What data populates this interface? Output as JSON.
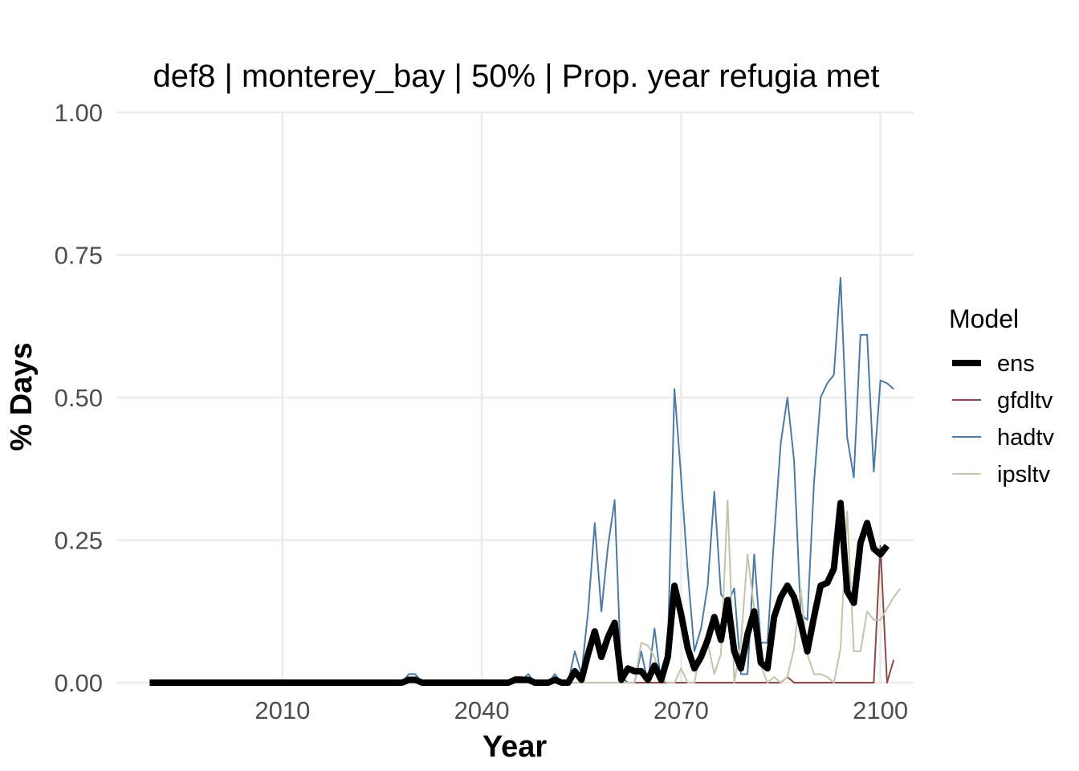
{
  "chart_data": {
    "type": "line",
    "title": "def8 | monterey_bay | 50% | Prop. year refugia met",
    "xlabel": "Year",
    "ylabel": "% Days",
    "xlim": [
      1985,
      2105
    ],
    "ylim": [
      0,
      1.0
    ],
    "x_ticks": [
      2010,
      2040,
      2070,
      2100
    ],
    "y_ticks": [
      0,
      0.25,
      0.5,
      0.75,
      1.0
    ],
    "y_tick_labels": [
      "0.00",
      "0.25",
      "0.50",
      "0.75",
      "1.00"
    ],
    "grid": true,
    "legend": {
      "title": "Model",
      "position": "right"
    },
    "x_start": 1990,
    "x_end": 2100,
    "series": [
      {
        "name": "ens",
        "color": "#000000",
        "emphasis": true,
        "points": [
          [
            1990,
            0
          ],
          [
            2028,
            0
          ],
          [
            2029,
            0.005
          ],
          [
            2030,
            0.005
          ],
          [
            2031,
            0
          ],
          [
            2044,
            0
          ],
          [
            2045,
            0.005
          ],
          [
            2046,
            0.005
          ],
          [
            2047,
            0.005
          ],
          [
            2048,
            0
          ],
          [
            2050,
            0
          ],
          [
            2051,
            0.005
          ],
          [
            2052,
            0
          ],
          [
            2053,
            0
          ],
          [
            2054,
            0.02
          ],
          [
            2055,
            0.005
          ],
          [
            2056,
            0.05
          ],
          [
            2057,
            0.09
          ],
          [
            2058,
            0.045
          ],
          [
            2059,
            0.08
          ],
          [
            2060,
            0.105
          ],
          [
            2061,
            0.005
          ],
          [
            2062,
            0.025
          ],
          [
            2063,
            0.02
          ],
          [
            2064,
            0.02
          ],
          [
            2065,
            0.005
          ],
          [
            2066,
            0.03
          ],
          [
            2067,
            0.005
          ],
          [
            2068,
            0.045
          ],
          [
            2069,
            0.17
          ],
          [
            2070,
            0.12
          ],
          [
            2071,
            0.06
          ],
          [
            2072,
            0.025
          ],
          [
            2073,
            0.045
          ],
          [
            2074,
            0.075
          ],
          [
            2075,
            0.115
          ],
          [
            2076,
            0.075
          ],
          [
            2077,
            0.145
          ],
          [
            2078,
            0.055
          ],
          [
            2079,
            0.025
          ],
          [
            2080,
            0.085
          ],
          [
            2081,
            0.125
          ],
          [
            2082,
            0.035
          ],
          [
            2083,
            0.025
          ],
          [
            2084,
            0.115
          ],
          [
            2085,
            0.15
          ],
          [
            2086,
            0.17
          ],
          [
            2087,
            0.15
          ],
          [
            2088,
            0.105
          ],
          [
            2089,
            0.055
          ],
          [
            2090,
            0.115
          ],
          [
            2091,
            0.17
          ],
          [
            2092,
            0.175
          ],
          [
            2093,
            0.2
          ],
          [
            2094,
            0.315
          ],
          [
            2095,
            0.16
          ],
          [
            2096,
            0.14
          ],
          [
            2097,
            0.245
          ],
          [
            2098,
            0.28
          ],
          [
            2099,
            0.235
          ],
          [
            2100,
            0.225
          ],
          [
            2101,
            0.24
          ]
        ]
      },
      {
        "name": "gfdltv",
        "color": "#8b4a48",
        "emphasis": false,
        "points": [
          [
            1990,
            0
          ],
          [
            2044,
            0
          ],
          [
            2045,
            0.01
          ],
          [
            2046,
            0.01
          ],
          [
            2047,
            0
          ],
          [
            2085,
            0
          ],
          [
            2086,
            0.01
          ],
          [
            2087,
            0
          ],
          [
            2099,
            0
          ],
          [
            2100,
            0.24
          ],
          [
            2101,
            0
          ],
          [
            2102,
            0.04
          ]
        ]
      },
      {
        "name": "hadtv",
        "color": "#4a7aa6",
        "emphasis": false,
        "points": [
          [
            1990,
            0
          ],
          [
            2028,
            0
          ],
          [
            2029,
            0.015
          ],
          [
            2030,
            0.015
          ],
          [
            2031,
            0
          ],
          [
            2045,
            0
          ],
          [
            2046,
            0.005
          ],
          [
            2047,
            0.015
          ],
          [
            2048,
            0
          ],
          [
            2050,
            0
          ],
          [
            2051,
            0.015
          ],
          [
            2052,
            0
          ],
          [
            2053,
            0
          ],
          [
            2054,
            0.055
          ],
          [
            2055,
            0.015
          ],
          [
            2056,
            0.125
          ],
          [
            2057,
            0.28
          ],
          [
            2058,
            0.125
          ],
          [
            2059,
            0.24
          ],
          [
            2060,
            0.32
          ],
          [
            2061,
            0.01
          ],
          [
            2062,
            0
          ],
          [
            2063,
            0
          ],
          [
            2064,
            0.055
          ],
          [
            2065,
            0
          ],
          [
            2066,
            0.095
          ],
          [
            2067,
            0
          ],
          [
            2068,
            0.06
          ],
          [
            2069,
            0.515
          ],
          [
            2070,
            0.36
          ],
          [
            2071,
            0.195
          ],
          [
            2072,
            0.055
          ],
          [
            2073,
            0.095
          ],
          [
            2074,
            0.17
          ],
          [
            2075,
            0.335
          ],
          [
            2076,
            0.155
          ],
          [
            2077,
            0.14
          ],
          [
            2078,
            0.165
          ],
          [
            2079,
            0.015
          ],
          [
            2080,
            0.015
          ],
          [
            2081,
            0.225
          ],
          [
            2082,
            0.07
          ],
          [
            2083,
            0.07
          ],
          [
            2084,
            0.255
          ],
          [
            2085,
            0.42
          ],
          [
            2086,
            0.5
          ],
          [
            2087,
            0.39
          ],
          [
            2088,
            0.12
          ],
          [
            2089,
            0.11
          ],
          [
            2090,
            0.35
          ],
          [
            2091,
            0.5
          ],
          [
            2092,
            0.525
          ],
          [
            2093,
            0.54
          ],
          [
            2094,
            0.71
          ],
          [
            2095,
            0.43
          ],
          [
            2096,
            0.36
          ],
          [
            2097,
            0.61
          ],
          [
            2098,
            0.61
          ],
          [
            2099,
            0.37
          ],
          [
            2100,
            0.53
          ],
          [
            2101,
            0.525
          ],
          [
            2102,
            0.515
          ]
        ]
      },
      {
        "name": "ipsltv",
        "color": "#c2c4ac",
        "emphasis": false,
        "points": [
          [
            1990,
            0
          ],
          [
            2063,
            0
          ],
          [
            2064,
            0.07
          ],
          [
            2065,
            0.065
          ],
          [
            2066,
            0.045
          ],
          [
            2067,
            0.005
          ],
          [
            2068,
            0
          ],
          [
            2069,
            0
          ],
          [
            2070,
            0.025
          ],
          [
            2071,
            0
          ],
          [
            2072,
            0
          ],
          [
            2073,
            0.06
          ],
          [
            2074,
            0.07
          ],
          [
            2075,
            0.015
          ],
          [
            2076,
            0.05
          ],
          [
            2077,
            0.32
          ],
          [
            2078,
            0
          ],
          [
            2079,
            0.07
          ],
          [
            2080,
            0.225
          ],
          [
            2081,
            0.13
          ],
          [
            2082,
            0.03
          ],
          [
            2083,
            0
          ],
          [
            2084,
            0.01
          ],
          [
            2085,
            0
          ],
          [
            2086,
            0.01
          ],
          [
            2087,
            0.06
          ],
          [
            2088,
            0.165
          ],
          [
            2089,
            0.05
          ],
          [
            2090,
            0.015
          ],
          [
            2091,
            0.015
          ],
          [
            2092,
            0.01
          ],
          [
            2093,
            0
          ],
          [
            2094,
            0.06
          ],
          [
            2095,
            0.3
          ],
          [
            2096,
            0.055
          ],
          [
            2097,
            0.055
          ],
          [
            2098,
            0.125
          ],
          [
            2099,
            0.11
          ],
          [
            2100,
            0.11
          ],
          [
            2101,
            0.13
          ],
          [
            2102,
            0.15
          ],
          [
            2103,
            0.165
          ]
        ]
      }
    ]
  }
}
